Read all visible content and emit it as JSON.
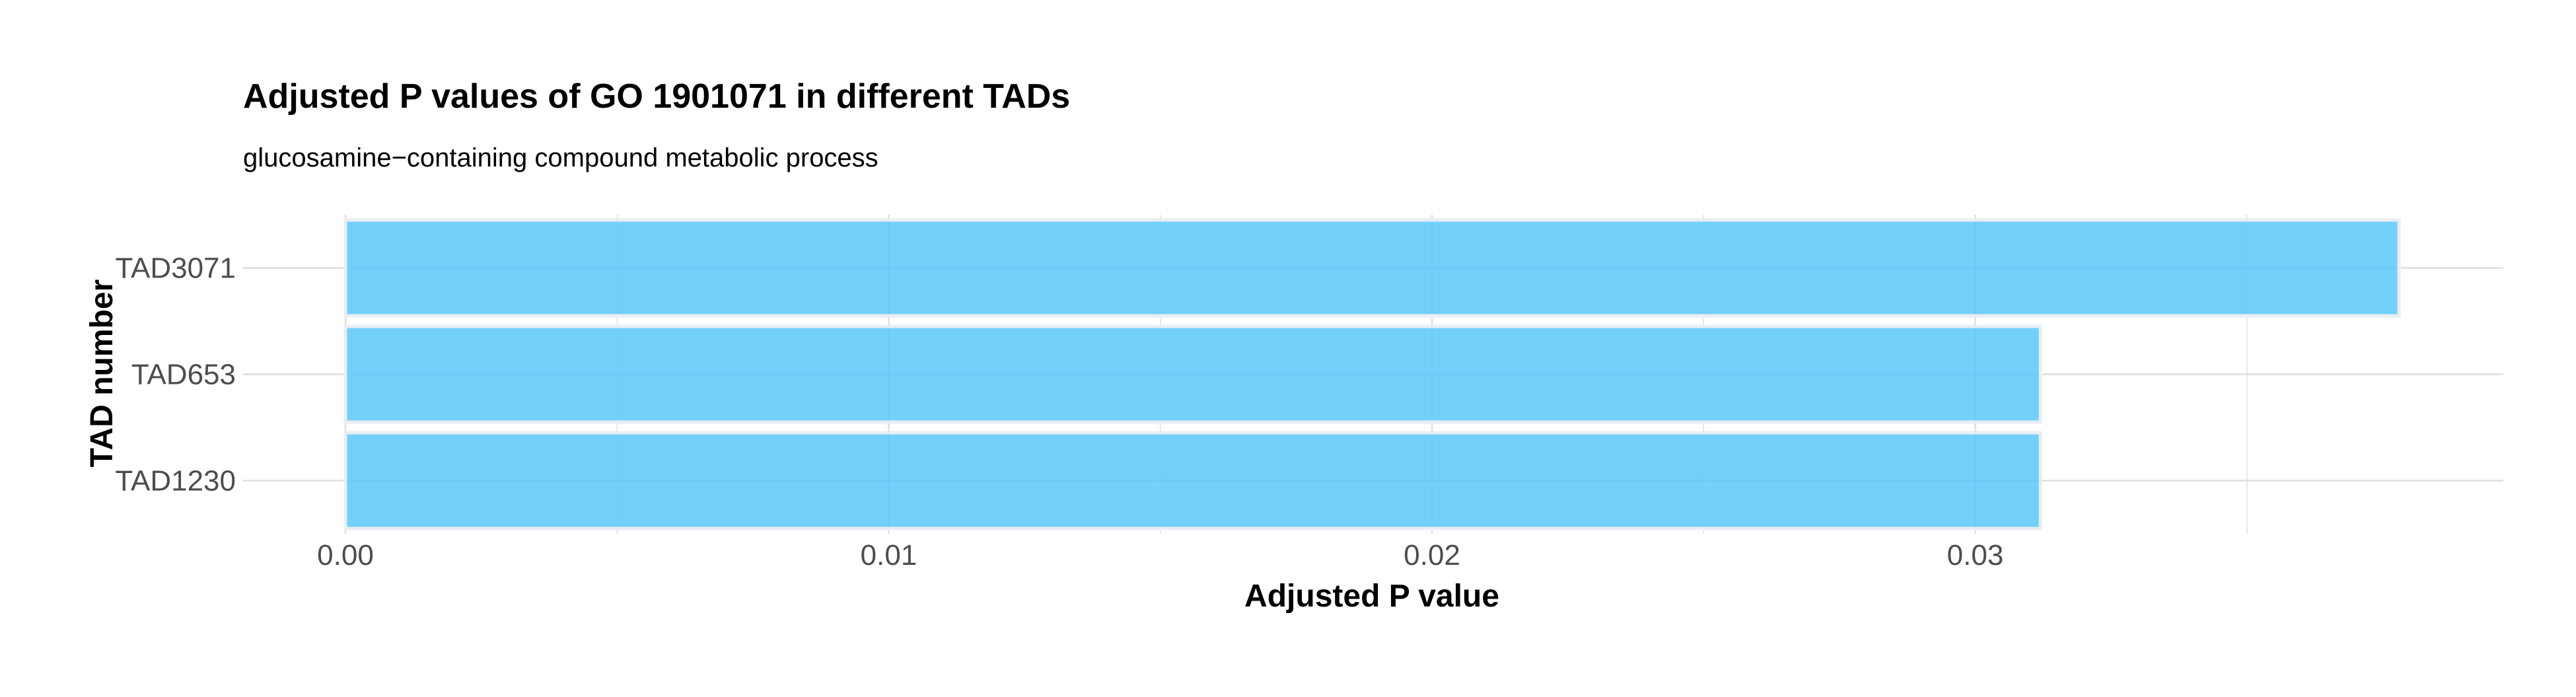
{
  "chart_data": {
    "type": "bar",
    "orientation": "horizontal",
    "title": "Adjusted P values of GO 1901071 in different TADs",
    "subtitle": "glucosamine−containing compound metabolic process",
    "xlabel": "Adjusted P value",
    "ylabel": "TAD number",
    "categories": [
      "TAD3071",
      "TAD653",
      "TAD1230"
    ],
    "values": [
      0.0378,
      0.0312,
      0.0312
    ],
    "xlim": [
      0,
      0.0397
    ],
    "x_ticks": [
      0.0,
      0.01,
      0.02,
      0.03
    ],
    "x_tick_labels": [
      "0.00",
      "0.01",
      "0.02",
      "0.03"
    ],
    "grid": true,
    "legend": "none",
    "bar_color": "#5BC8FA",
    "bar_edge_color": "#E8EEF4",
    "grid_color": "#DEDEDE"
  }
}
